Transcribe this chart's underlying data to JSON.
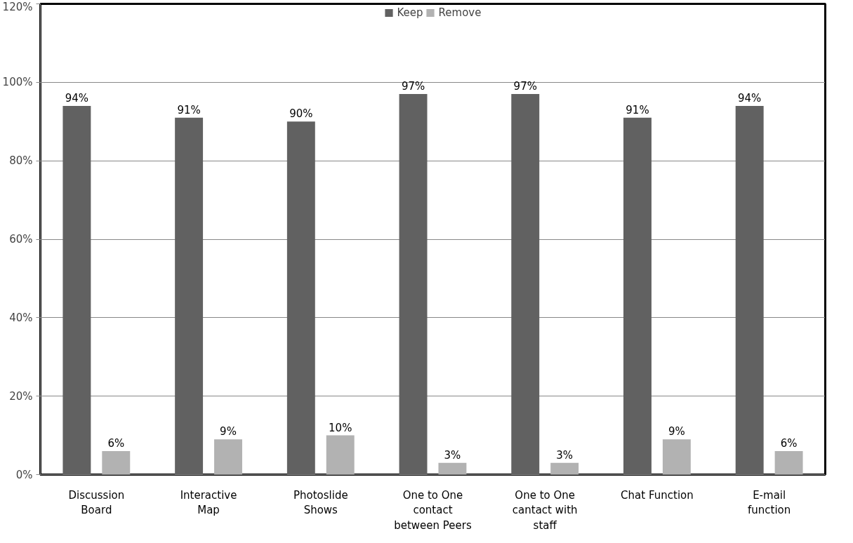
{
  "chart_data": {
    "type": "bar",
    "categories": [
      "Discussion Board",
      "Interactive Map",
      "Photoslide Shows",
      "One to One contact between Peers",
      "One to One cantact with staff",
      "Chat Function",
      "E-mail function"
    ],
    "series": [
      {
        "name": "Keep",
        "color": "#616161",
        "values": [
          94,
          91,
          90,
          97,
          97,
          91,
          94
        ],
        "value_labels": [
          "94%",
          "91%",
          "90%",
          "97%",
          "97%",
          "91%",
          "94%"
        ]
      },
      {
        "name": "Remove",
        "color": "#b2b2b2",
        "values": [
          6,
          9,
          10,
          3,
          3,
          9,
          6
        ],
        "value_labels": [
          "6%",
          "9%",
          "10%",
          "3%",
          "3%",
          "9%",
          "6%"
        ]
      }
    ],
    "ylim": [
      0,
      120
    ],
    "yticks": [
      {
        "value": 0,
        "label": "0%"
      },
      {
        "value": 20,
        "label": "20%"
      },
      {
        "value": 40,
        "label": "40%"
      },
      {
        "value": 60,
        "label": "60%"
      },
      {
        "value": 80,
        "label": "80%"
      },
      {
        "value": 100,
        "label": "100%"
      },
      {
        "value": 120,
        "label": "120%"
      }
    ],
    "grid": "y",
    "legend": "top"
  }
}
